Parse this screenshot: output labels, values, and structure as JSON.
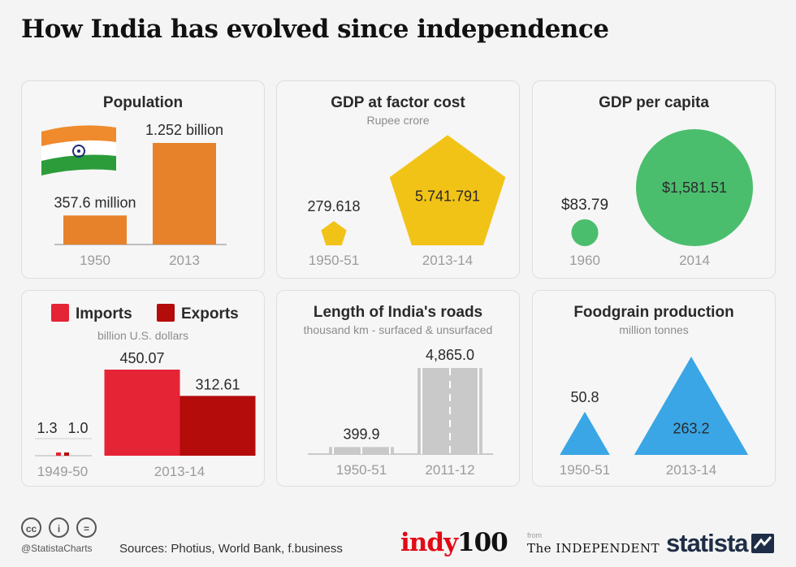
{
  "title": "How India has evolved since independence",
  "colors": {
    "orange": "#e8822a",
    "yellow": "#f2c317",
    "green": "#4bbe6e",
    "imports": "#e52435",
    "exports": "#b40b0b",
    "road": "#c9c9c9",
    "blue": "#3aa6e6",
    "axis_label": "#9b9b9b"
  },
  "panels": {
    "population": {
      "title": "Population"
    },
    "gdp": {
      "title": "GDP at factor cost",
      "subtitle": "Rupee crore"
    },
    "gdp_per_capita": {
      "title": "GDP per capita"
    },
    "trade": {
      "subtitle": "billion U.S. dollars"
    },
    "roads": {
      "title": "Length of India's roads",
      "subtitle": "thousand km - surfaced & unsurfaced"
    },
    "foodgrain": {
      "title": "Foodgrain production",
      "subtitle": "million tonnes"
    }
  },
  "chart_data": [
    {
      "type": "bar",
      "title": "Population",
      "categories": [
        "1950",
        "2013"
      ],
      "values": [
        357.6,
        1252
      ],
      "labels": [
        "357.6 million",
        "1.252 billion"
      ]
    },
    {
      "type": "pentagon-area",
      "title": "GDP at factor cost",
      "subtitle": "Rupee crore",
      "categories": [
        "1950-51",
        "2013-14"
      ],
      "values": [
        279.618,
        5741.791
      ],
      "labels": [
        "279.618",
        "5.741.791"
      ]
    },
    {
      "type": "circle-area",
      "title": "GDP per capita",
      "categories": [
        "1960",
        "2014"
      ],
      "values": [
        83.79,
        1581.51
      ],
      "labels": [
        "$83.79",
        "$1,581.51"
      ]
    },
    {
      "type": "bar",
      "subtitle": "billion U.S. dollars",
      "categories": [
        "1949-50",
        "2013-14"
      ],
      "legend": "top",
      "series": [
        {
          "name": "Imports",
          "values": [
            1.3,
            450.07
          ],
          "labels": [
            "1.3",
            "450.07"
          ]
        },
        {
          "name": "Exports",
          "values": [
            1.0,
            312.61
          ],
          "labels": [
            "1.0",
            "312.61"
          ]
        }
      ]
    },
    {
      "type": "bar",
      "title": "Length of India's roads",
      "subtitle": "thousand km - surfaced & unsurfaced",
      "categories": [
        "1950-51",
        "2011-12"
      ],
      "values": [
        399.9,
        4865.0
      ],
      "labels": [
        "399.9",
        "4,865.0"
      ]
    },
    {
      "type": "triangle-area",
      "title": "Foodgrain production",
      "subtitle": "million tonnes",
      "categories": [
        "1950-51",
        "2013-14"
      ],
      "values": [
        50.8,
        263.2
      ],
      "labels": [
        "50.8",
        "263.2"
      ]
    }
  ],
  "footer": {
    "handle": "@StatistaCharts",
    "sources": "Sources: Photius, World Bank, f.business",
    "cc_icons": [
      "cc",
      "i",
      "="
    ],
    "logos": {
      "indy": "indy",
      "indy100": "100",
      "from": "from",
      "independent": "The INDEPENDENT",
      "statista": "statista"
    }
  }
}
